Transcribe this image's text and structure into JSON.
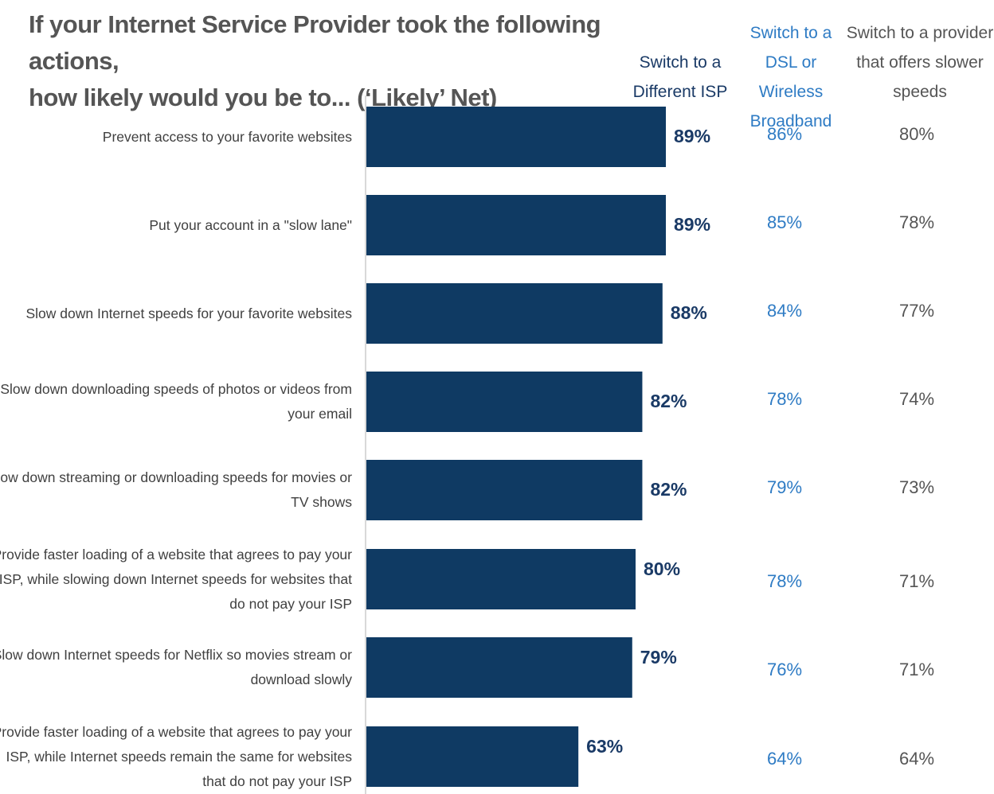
{
  "title_lines": [
    "If your Internet Service Provider took the following actions,",
    "how likely would you be to... (‘Likely’ Net)"
  ],
  "headers": {
    "isp": [
      "Switch to a",
      "Different ISP"
    ],
    "dsl": [
      "Switch to a",
      "DSL or Wireless",
      "Broadband"
    ],
    "slow": [
      "Switch to a provider",
      "that offers slower",
      "speeds"
    ]
  },
  "colors": {
    "bar": "#0f3a63",
    "isp_text": "#1a3a66",
    "dsl_text": "#2e7bc4",
    "slow_text": "#555555"
  },
  "chart_data": {
    "type": "bar",
    "orientation": "horizontal",
    "title": "If your Internet Service Provider took the following actions, how likely would you be to... (‘Likely’ Net)",
    "categories": [
      [
        "Prevent access to your favorite websites"
      ],
      [
        "Put your account in a \"slow lane\""
      ],
      [
        "Slow down Internet speeds for your favorite websites"
      ],
      [
        "Slow down  downloading speeds of photos or videos from",
        "your email"
      ],
      [
        "Slow down streaming or downloading speeds for movies or",
        "TV shows"
      ],
      [
        "Provide faster loading of a website that agrees to pay your",
        "ISP, while slowing down Internet speeds for websites that",
        "do not pay your ISP"
      ],
      [
        "Slow down Internet speeds for Netflix so movies stream or",
        "download slowly"
      ],
      [
        "Provide faster loading of a website that agrees to pay your",
        "ISP, while Internet speeds remain the same for websites",
        "that do not pay your ISP"
      ]
    ],
    "series": [
      {
        "name": "Switch to a Different ISP",
        "values": [
          89,
          89,
          88,
          82,
          82,
          80,
          79,
          63
        ],
        "labels": [
          "89%",
          "89%",
          "88%",
          "82%",
          "82%",
          "80%",
          "79%",
          "63%"
        ]
      },
      {
        "name": "Switch to a DSL or Wireless Broadband",
        "values": [
          86,
          85,
          84,
          78,
          79,
          78,
          76,
          64
        ],
        "labels": [
          "86%",
          "85%",
          "84%",
          "78%",
          "79%",
          "78%",
          "76%",
          "64%"
        ]
      },
      {
        "name": "Switch to a provider that offers slower speeds",
        "values": [
          80,
          78,
          77,
          74,
          73,
          71,
          71,
          64
        ],
        "labels": [
          "80%",
          "78%",
          "77%",
          "74%",
          "73%",
          "71%",
          "71%",
          "64%"
        ]
      }
    ],
    "xlim": [
      0,
      100
    ],
    "grid": false,
    "legend": "none"
  }
}
